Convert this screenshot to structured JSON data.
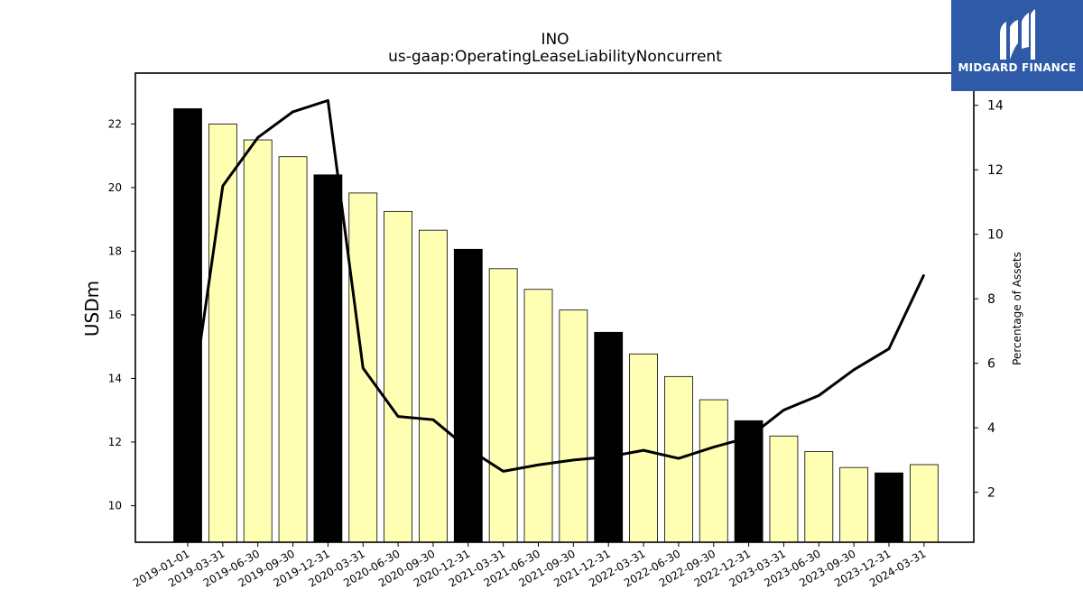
{
  "logo": {
    "text": "MIDGARD FINANCE",
    "color": "#2f5aa8"
  },
  "chart_data": {
    "type": "bar",
    "title": "INO",
    "subtitle": "us-gaap:OperatingLeaseLiabilityNoncurrent",
    "ylabel": "USDm",
    "y2label": "Percentage of Assets",
    "ylim": [
      8.85,
      23.6
    ],
    "y2lim": [
      0.45,
      15.0
    ],
    "yticks": [
      10,
      12,
      14,
      16,
      18,
      20,
      22
    ],
    "y2ticks": [
      2,
      4,
      6,
      8,
      10,
      12,
      14
    ],
    "categories": [
      "2019-01-01",
      "2019-03-31",
      "2019-06-30",
      "2019-09-30",
      "2019-12-31",
      "2020-03-31",
      "2020-06-30",
      "2020-09-30",
      "2020-12-31",
      "2021-03-31",
      "2021-06-30",
      "2021-09-30",
      "2021-12-31",
      "2022-03-31",
      "2022-06-30",
      "2022-09-30",
      "2022-12-31",
      "2023-03-31",
      "2023-06-30",
      "2023-09-30",
      "2023-12-31",
      "2024-03-31"
    ],
    "series": [
      {
        "type": "bar",
        "values": [
          22.48,
          22.0,
          21.5,
          20.97,
          20.4,
          19.83,
          19.25,
          18.66,
          18.06,
          17.45,
          16.8,
          16.15,
          15.45,
          14.77,
          14.06,
          13.33,
          12.67,
          12.19,
          11.7,
          11.2,
          11.03,
          11.29
        ],
        "year_end": [
          true,
          false,
          false,
          false,
          true,
          false,
          false,
          false,
          true,
          false,
          false,
          false,
          true,
          false,
          false,
          false,
          true,
          false,
          false,
          false,
          true,
          false
        ]
      },
      {
        "type": "line",
        "axis": "right",
        "values": [
          3.9,
          11.5,
          13.0,
          13.8,
          14.15,
          5.85,
          4.35,
          4.25,
          3.35,
          2.65,
          2.85,
          3.0,
          3.1,
          3.3,
          3.05,
          3.4,
          3.7,
          4.55,
          5.0,
          5.8,
          6.45,
          8.75
        ]
      }
    ],
    "colors": {
      "bar_fill": "#ffffb3",
      "bar_highlight": "#000000",
      "line": "#000000"
    }
  }
}
